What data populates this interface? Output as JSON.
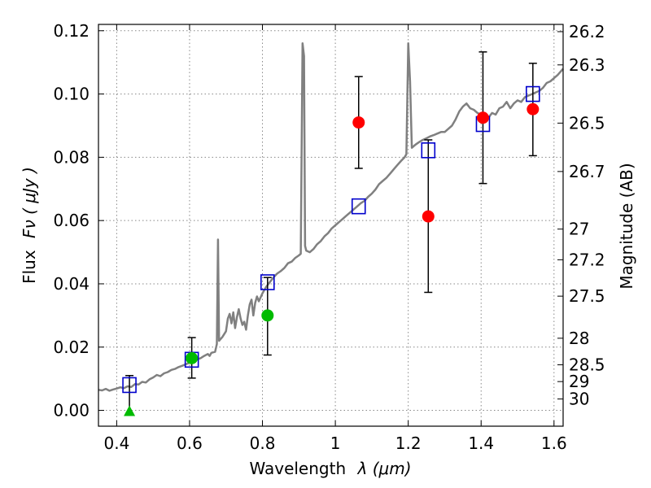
{
  "chart_data": {
    "type": "scatter",
    "xlabel_text": "Wavelength",
    "xlabel_math": "λ (μm)",
    "ylabel_text": "Flux",
    "ylabel_math": "Fν ( μJy )",
    "y2label": "Magnitude (AB)",
    "xlim": [
      0.35,
      1.625
    ],
    "ylim": [
      -0.005,
      0.122
    ],
    "grid": true,
    "x_ticks": [
      0.4,
      0.6,
      0.8,
      1.0,
      1.2,
      1.4,
      1.6
    ],
    "x_tick_labels": [
      "0.4",
      "0.6",
      "0.8",
      "1",
      "1.2",
      "1.4",
      "1.6"
    ],
    "y_ticks": [
      0.0,
      0.02,
      0.04,
      0.06,
      0.08,
      0.1,
      0.12
    ],
    "y_tick_labels": [
      "0.00",
      "0.02",
      "0.04",
      "0.06",
      "0.08",
      "0.10",
      "0.12"
    ],
    "magnitude_ticks": [
      {
        "label": "26.2",
        "flux": 0.1197
      },
      {
        "label": "26.3",
        "flux": 0.1092
      },
      {
        "label": "26.5",
        "flux": 0.0908
      },
      {
        "label": "26.7",
        "flux": 0.0755
      },
      {
        "label": "27",
        "flux": 0.0573
      },
      {
        "label": "27.2",
        "flux": 0.0476
      },
      {
        "label": "27.5",
        "flux": 0.0361
      },
      {
        "label": "28",
        "flux": 0.0228
      },
      {
        "label": "28.5",
        "flux": 0.0144
      },
      {
        "label": "29",
        "flux": 0.0091
      },
      {
        "label": "30",
        "flux": 0.0036
      }
    ],
    "colors": {
      "spectrum": "#808080",
      "model": "#0000cc",
      "red": "#ff0000",
      "green": "#00bb00",
      "grid": "#888888",
      "errorbar": "#000000"
    },
    "spectrum": [
      [
        0.35,
        0.0065
      ],
      [
        0.36,
        0.0063
      ],
      [
        0.37,
        0.0068
      ],
      [
        0.38,
        0.0062
      ],
      [
        0.39,
        0.0066
      ],
      [
        0.4,
        0.0069
      ],
      [
        0.41,
        0.0073
      ],
      [
        0.42,
        0.007
      ],
      [
        0.43,
        0.0076
      ],
      [
        0.44,
        0.0074
      ],
      [
        0.45,
        0.0083
      ],
      [
        0.46,
        0.0082
      ],
      [
        0.47,
        0.009
      ],
      [
        0.48,
        0.0088
      ],
      [
        0.49,
        0.0098
      ],
      [
        0.5,
        0.0104
      ],
      [
        0.51,
        0.0112
      ],
      [
        0.52,
        0.0108
      ],
      [
        0.53,
        0.0117
      ],
      [
        0.54,
        0.0121
      ],
      [
        0.55,
        0.0128
      ],
      [
        0.56,
        0.0131
      ],
      [
        0.57,
        0.0137
      ],
      [
        0.58,
        0.0141
      ],
      [
        0.59,
        0.0146
      ],
      [
        0.6,
        0.0151
      ],
      [
        0.61,
        0.0155
      ],
      [
        0.62,
        0.0161
      ],
      [
        0.63,
        0.0165
      ],
      [
        0.64,
        0.0172
      ],
      [
        0.65,
        0.0178
      ],
      [
        0.655,
        0.0172
      ],
      [
        0.66,
        0.0182
      ],
      [
        0.67,
        0.0185
      ],
      [
        0.675,
        0.021
      ],
      [
        0.678,
        0.054
      ],
      [
        0.681,
        0.022
      ],
      [
        0.69,
        0.0232
      ],
      [
        0.7,
        0.025
      ],
      [
        0.705,
        0.029
      ],
      [
        0.71,
        0.0305
      ],
      [
        0.715,
        0.0275
      ],
      [
        0.72,
        0.031
      ],
      [
        0.725,
        0.026
      ],
      [
        0.73,
        0.0295
      ],
      [
        0.735,
        0.032
      ],
      [
        0.74,
        0.029
      ],
      [
        0.745,
        0.027
      ],
      [
        0.75,
        0.028
      ],
      [
        0.755,
        0.0255
      ],
      [
        0.76,
        0.03
      ],
      [
        0.765,
        0.0335
      ],
      [
        0.77,
        0.035
      ],
      [
        0.775,
        0.03
      ],
      [
        0.78,
        0.034
      ],
      [
        0.785,
        0.036
      ],
      [
        0.79,
        0.0345
      ],
      [
        0.8,
        0.037
      ],
      [
        0.81,
        0.039
      ],
      [
        0.82,
        0.0405
      ],
      [
        0.83,
        0.042
      ],
      [
        0.84,
        0.0432
      ],
      [
        0.85,
        0.044
      ],
      [
        0.86,
        0.045
      ],
      [
        0.87,
        0.0465
      ],
      [
        0.88,
        0.047
      ],
      [
        0.89,
        0.0482
      ],
      [
        0.9,
        0.049
      ],
      [
        0.905,
        0.0495
      ],
      [
        0.91,
        0.116
      ],
      [
        0.914,
        0.112
      ],
      [
        0.917,
        0.052
      ],
      [
        0.92,
        0.0505
      ],
      [
        0.93,
        0.05
      ],
      [
        0.94,
        0.051
      ],
      [
        0.95,
        0.0525
      ],
      [
        0.96,
        0.0535
      ],
      [
        0.97,
        0.055
      ],
      [
        0.98,
        0.056
      ],
      [
        0.99,
        0.0575
      ],
      [
        1.0,
        0.0585
      ],
      [
        1.01,
        0.0595
      ],
      [
        1.02,
        0.0605
      ],
      [
        1.03,
        0.0615
      ],
      [
        1.04,
        0.0625
      ],
      [
        1.05,
        0.0635
      ],
      [
        1.06,
        0.0645
      ],
      [
        1.07,
        0.0655
      ],
      [
        1.08,
        0.0662
      ],
      [
        1.09,
        0.0675
      ],
      [
        1.1,
        0.0685
      ],
      [
        1.11,
        0.0698
      ],
      [
        1.12,
        0.0715
      ],
      [
        1.13,
        0.0725
      ],
      [
        1.14,
        0.0735
      ],
      [
        1.15,
        0.0748
      ],
      [
        1.16,
        0.0762
      ],
      [
        1.17,
        0.0775
      ],
      [
        1.18,
        0.0788
      ],
      [
        1.19,
        0.08
      ],
      [
        1.195,
        0.081
      ],
      [
        1.2,
        0.116
      ],
      [
        1.205,
        0.104
      ],
      [
        1.21,
        0.083
      ],
      [
        1.22,
        0.084
      ],
      [
        1.23,
        0.0848
      ],
      [
        1.24,
        0.0855
      ],
      [
        1.25,
        0.086
      ],
      [
        1.26,
        0.0866
      ],
      [
        1.27,
        0.087
      ],
      [
        1.28,
        0.0875
      ],
      [
        1.29,
        0.088
      ],
      [
        1.3,
        0.088
      ],
      [
        1.31,
        0.089
      ],
      [
        1.32,
        0.09
      ],
      [
        1.33,
        0.092
      ],
      [
        1.34,
        0.0945
      ],
      [
        1.35,
        0.096
      ],
      [
        1.36,
        0.097
      ],
      [
        1.37,
        0.0955
      ],
      [
        1.38,
        0.095
      ],
      [
        1.39,
        0.094
      ],
      [
        1.4,
        0.0935
      ],
      [
        1.41,
        0.093
      ],
      [
        1.42,
        0.0925
      ],
      [
        1.43,
        0.094
      ],
      [
        1.44,
        0.0935
      ],
      [
        1.45,
        0.0955
      ],
      [
        1.46,
        0.096
      ],
      [
        1.47,
        0.0975
      ],
      [
        1.48,
        0.0955
      ],
      [
        1.49,
        0.097
      ],
      [
        1.5,
        0.098
      ],
      [
        1.51,
        0.0975
      ],
      [
        1.52,
        0.099
      ],
      [
        1.53,
        0.0995
      ],
      [
        1.54,
        0.1
      ],
      [
        1.55,
        0.1005
      ],
      [
        1.56,
        0.101
      ],
      [
        1.57,
        0.102
      ],
      [
        1.58,
        0.1035
      ],
      [
        1.59,
        0.104
      ],
      [
        1.6,
        0.105
      ],
      [
        1.61,
        0.106
      ],
      [
        1.625,
        0.108
      ]
    ],
    "model_points": [
      {
        "x": 0.435,
        "y": 0.008
      },
      {
        "x": 0.606,
        "y": 0.016
      },
      {
        "x": 0.814,
        "y": 0.0405
      },
      {
        "x": 1.064,
        "y": 0.0645
      },
      {
        "x": 1.255,
        "y": 0.0822
      },
      {
        "x": 1.405,
        "y": 0.0905
      },
      {
        "x": 1.542,
        "y": 0.1
      }
    ],
    "red_points": [
      {
        "x": 1.064,
        "y": 0.091,
        "err_lo": 0.0765,
        "err_hi": 0.1055
      },
      {
        "x": 1.255,
        "y": 0.0613,
        "err_lo": 0.0373,
        "err_hi": 0.0855
      },
      {
        "x": 1.405,
        "y": 0.0925,
        "err_lo": 0.0717,
        "err_hi": 0.1133
      },
      {
        "x": 1.542,
        "y": 0.0952,
        "err_lo": 0.0805,
        "err_hi": 0.1097
      }
    ],
    "green_points": [
      {
        "x": 0.606,
        "y": 0.0165,
        "err_lo": 0.0102,
        "err_hi": 0.023
      },
      {
        "x": 0.814,
        "y": 0.03,
        "err_lo": 0.0175,
        "err_hi": 0.042
      }
    ],
    "green_limit": {
      "x": 0.435,
      "y": -0.001,
      "err_hi": 0.011
    }
  }
}
